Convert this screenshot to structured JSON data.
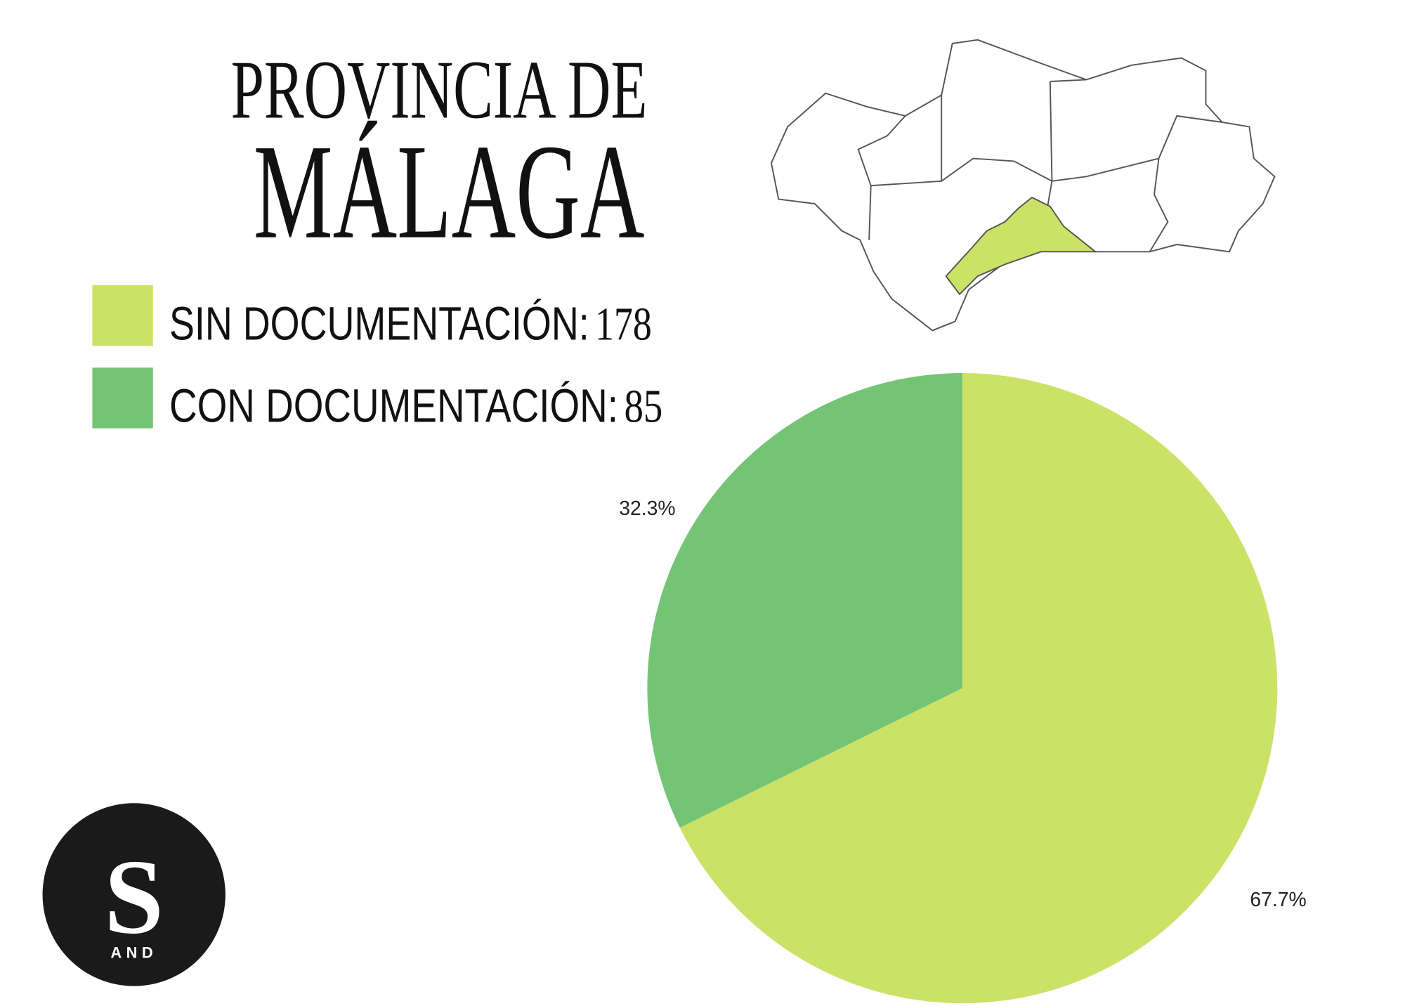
{
  "chart_data": {
    "type": "pie",
    "title": "PROVINCIA DE",
    "subtitle": "MÁLAGA",
    "categories": [
      "SIN DOCUMENTACIÓN:",
      "CON DOCUMENTACIÓN:"
    ],
    "counts": [
      178,
      85
    ],
    "values": [
      67.7,
      32.3
    ],
    "value_labels": [
      "67.7%",
      "32.3%"
    ],
    "colors": [
      "#cbe267",
      "#74c476"
    ]
  },
  "logo": {
    "letter": "S",
    "text": "AND"
  }
}
